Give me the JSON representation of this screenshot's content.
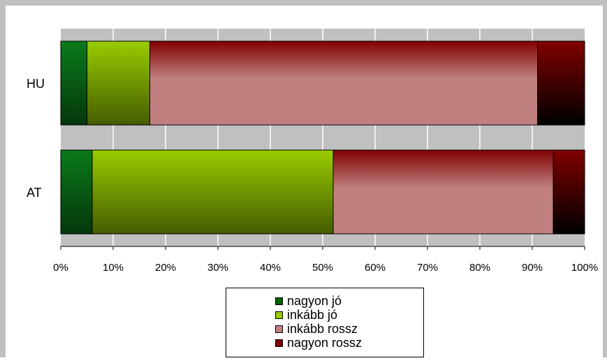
{
  "chart_data": {
    "type": "bar",
    "orientation": "horizontal",
    "stacked": "percent",
    "categories": [
      "HU",
      "AT"
    ],
    "series": [
      {
        "name": "nagyon jó",
        "values": [
          5,
          6
        ],
        "color": "#0a7a1a"
      },
      {
        "name": "inkább jó",
        "values": [
          12,
          46
        ],
        "color": "#99cc00"
      },
      {
        "name": "inkább rossz",
        "values": [
          74,
          42
        ],
        "color": "#c08080"
      },
      {
        "name": "nagyon rossz",
        "values": [
          9,
          6
        ],
        "color": "#800000"
      }
    ],
    "xlim": [
      0,
      100
    ],
    "xticks": [
      "0%",
      "10%",
      "20%",
      "30%",
      "40%",
      "50%",
      "60%",
      "70%",
      "80%",
      "90%",
      "100%"
    ],
    "plot_background": "#c0c0c0",
    "grid": true,
    "legend_position": "bottom"
  }
}
